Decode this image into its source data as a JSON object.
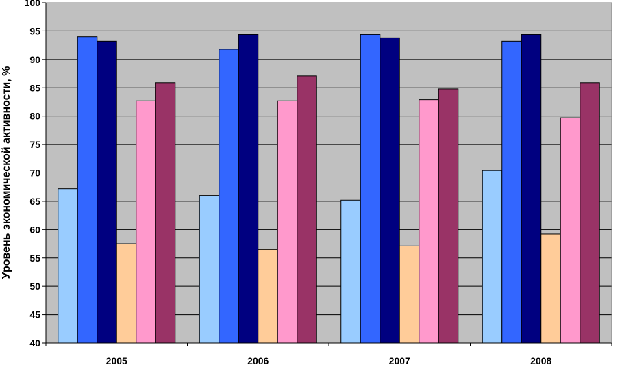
{
  "chart_data": {
    "type": "bar",
    "title": "",
    "xlabel": "",
    "ylabel": "Уровень экономической активности, %",
    "ylim": [
      40,
      100
    ],
    "yticks": [
      40,
      45,
      50,
      55,
      60,
      65,
      70,
      75,
      80,
      85,
      90,
      95,
      100
    ],
    "grid": true,
    "legend": "none",
    "categories": [
      "2005",
      "2006",
      "2007",
      "2008"
    ],
    "series": [
      {
        "color": "#99CCFF",
        "values": [
          67.2,
          66.0,
          65.2,
          70.4
        ]
      },
      {
        "color": "#3366FF",
        "values": [
          94.0,
          91.8,
          94.4,
          93.2
        ]
      },
      {
        "color": "#000080",
        "values": [
          93.2,
          94.4,
          93.8,
          94.4
        ]
      },
      {
        "color": "#FFCC99",
        "values": [
          57.5,
          56.5,
          57.1,
          59.2
        ]
      },
      {
        "color": "#FF99CC",
        "values": [
          82.7,
          82.7,
          82.9,
          79.7
        ]
      },
      {
        "color": "#993366",
        "values": [
          85.9,
          87.1,
          84.8,
          85.9
        ]
      }
    ]
  },
  "colors": {
    "plot_background": "#C0C0C0",
    "gridline": "#000000",
    "bar_outline": "#000000"
  }
}
